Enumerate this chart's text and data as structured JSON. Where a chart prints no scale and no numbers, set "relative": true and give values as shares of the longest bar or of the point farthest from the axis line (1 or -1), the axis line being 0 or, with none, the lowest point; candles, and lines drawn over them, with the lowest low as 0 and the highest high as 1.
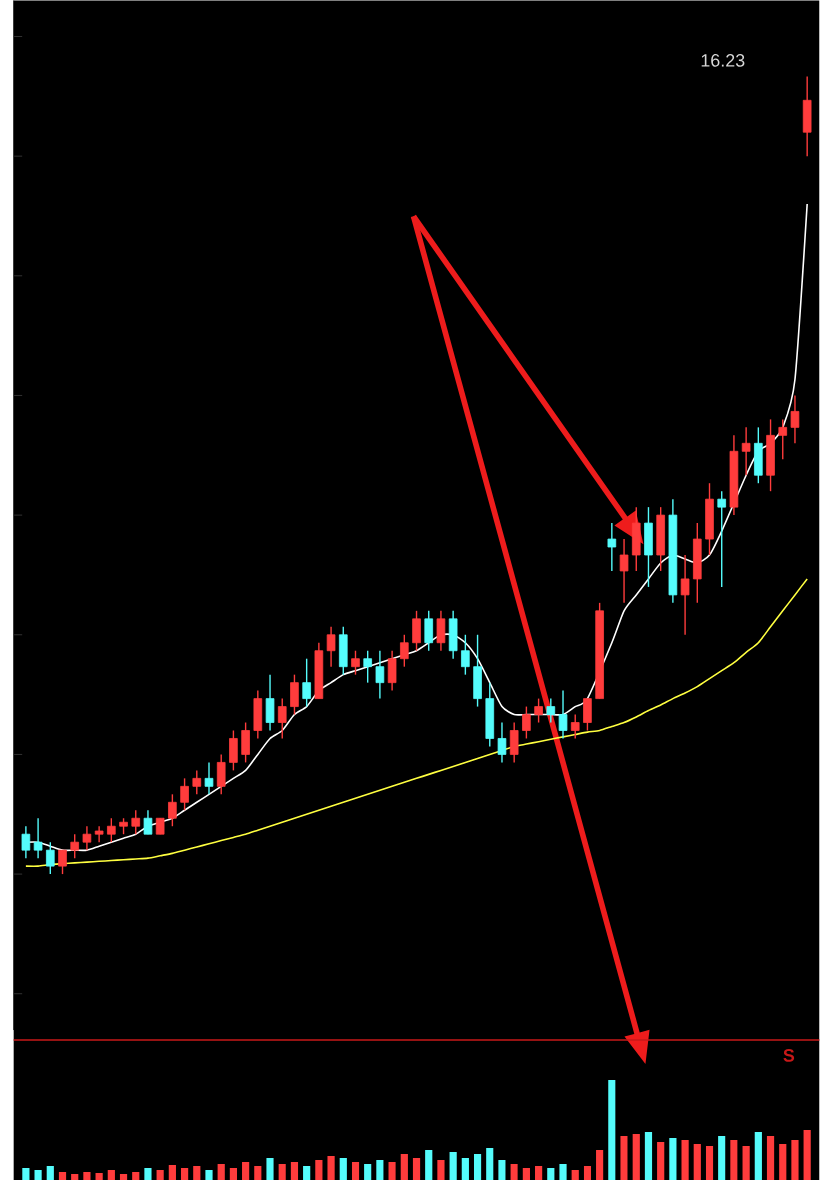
{
  "chart_data": [
    {
      "type": "candlestick",
      "relative": true,
      "categories": [
        null,
        null,
        null,
        null,
        null,
        null,
        null,
        null,
        null,
        null,
        null,
        null,
        null,
        null,
        null,
        null,
        null,
        null,
        null,
        null,
        null,
        null,
        null,
        null,
        null,
        null,
        null,
        null,
        null,
        null,
        null,
        null,
        null,
        null,
        null,
        null,
        null,
        null,
        null,
        null,
        null,
        null,
        null,
        null,
        null,
        null,
        null,
        null,
        null,
        null,
        null,
        null,
        null,
        null,
        null,
        null,
        null,
        null,
        null,
        null,
        null,
        null,
        null,
        null,
        null
      ],
      "ohlc": [
        [
          0.05,
          0.06,
          0.02,
          0.03
        ],
        [
          0.04,
          0.07,
          0.02,
          0.03
        ],
        [
          0.03,
          0.04,
          0,
          0.01
        ],
        [
          0.01,
          0.03,
          0,
          0.03
        ],
        [
          0.03,
          0.05,
          0.02,
          0.04
        ],
        [
          0.04,
          0.06,
          0.03,
          0.05
        ],
        [
          0.05,
          0.06,
          0.04,
          0.05
        ],
        [
          0.05,
          0.07,
          0.04,
          0.06
        ],
        [
          0.06,
          0.07,
          0.05,
          0.065
        ],
        [
          0.06,
          0.08,
          0.05,
          0.07
        ],
        [
          0.07,
          0.08,
          0.05,
          0.05
        ],
        [
          0.05,
          0.07,
          0.05,
          0.07
        ],
        [
          0.07,
          0.1,
          0.06,
          0.09
        ],
        [
          0.09,
          0.12,
          0.08,
          0.11
        ],
        [
          0.11,
          0.13,
          0.1,
          0.12
        ],
        [
          0.12,
          0.14,
          0.1,
          0.11
        ],
        [
          0.11,
          0.15,
          0.1,
          0.14
        ],
        [
          0.14,
          0.18,
          0.13,
          0.17
        ],
        [
          0.15,
          0.19,
          0.14,
          0.18
        ],
        [
          0.18,
          0.23,
          0.17,
          0.22
        ],
        [
          0.22,
          0.25,
          0.18,
          0.19
        ],
        [
          0.19,
          0.22,
          0.17,
          0.21
        ],
        [
          0.21,
          0.25,
          0.2,
          0.24
        ],
        [
          0.24,
          0.27,
          0.21,
          0.22
        ],
        [
          0.22,
          0.29,
          0.22,
          0.28
        ],
        [
          0.28,
          0.31,
          0.26,
          0.3
        ],
        [
          0.3,
          0.31,
          0.25,
          0.26
        ],
        [
          0.26,
          0.28,
          0.25,
          0.27
        ],
        [
          0.27,
          0.28,
          0.24,
          0.26
        ],
        [
          0.26,
          0.28,
          0.22,
          0.24
        ],
        [
          0.24,
          0.28,
          0.23,
          0.27
        ],
        [
          0.27,
          0.3,
          0.26,
          0.29
        ],
        [
          0.29,
          0.33,
          0.28,
          0.32
        ],
        [
          0.32,
          0.33,
          0.28,
          0.29
        ],
        [
          0.29,
          0.33,
          0.28,
          0.32
        ],
        [
          0.32,
          0.33,
          0.27,
          0.28
        ],
        [
          0.28,
          0.3,
          0.25,
          0.26
        ],
        [
          0.26,
          0.3,
          0.21,
          0.22
        ],
        [
          0.22,
          0.24,
          0.16,
          0.17
        ],
        [
          0.17,
          0.19,
          0.14,
          0.15
        ],
        [
          0.15,
          0.19,
          0.14,
          0.18
        ],
        [
          0.18,
          0.21,
          0.17,
          0.2
        ],
        [
          0.2,
          0.22,
          0.19,
          0.21
        ],
        [
          0.21,
          0.22,
          0.19,
          0.2
        ],
        [
          0.2,
          0.23,
          0.17,
          0.18
        ],
        [
          0.18,
          0.2,
          0.17,
          0.19
        ],
        [
          0.19,
          0.22,
          0.18,
          0.22
        ],
        [
          0.22,
          0.34,
          0.22,
          0.33
        ],
        [
          0.42,
          0.44,
          0.38,
          0.41
        ],
        [
          0.38,
          0.42,
          0.34,
          0.4
        ],
        [
          0.4,
          0.46,
          0.38,
          0.44
        ],
        [
          0.44,
          0.46,
          0.36,
          0.4
        ],
        [
          0.4,
          0.46,
          0.38,
          0.45
        ],
        [
          0.45,
          0.47,
          0.34,
          0.35
        ],
        [
          0.35,
          0.4,
          0.3,
          0.37
        ],
        [
          0.37,
          0.44,
          0.34,
          0.42
        ],
        [
          0.42,
          0.49,
          0.4,
          0.47
        ],
        [
          0.47,
          0.48,
          0.36,
          0.46
        ],
        [
          0.46,
          0.55,
          0.45,
          0.53
        ],
        [
          0.53,
          0.56,
          0.5,
          0.54
        ],
        [
          0.54,
          0.56,
          0.49,
          0.5
        ],
        [
          0.5,
          0.57,
          0.48,
          0.55
        ],
        [
          0.55,
          0.57,
          0.52,
          0.56
        ],
        [
          0.56,
          0.6,
          0.54,
          0.58
        ],
        [
          0.93,
          1,
          0.9,
          0.97
        ]
      ],
      "colors": [
        "#54fcfc",
        "#54fcfc",
        "#54fcfc",
        "#ff3c3c",
        "#ff3c3c",
        "#ff3c3c",
        "#ff3c3c",
        "#ff3c3c",
        "#ff3c3c",
        "#ff3c3c",
        "#54fcfc",
        "#ff3c3c",
        "#ff3c3c",
        "#ff3c3c",
        "#ff3c3c",
        "#54fcfc",
        "#ff3c3c",
        "#ff3c3c",
        "#ff3c3c",
        "#ff3c3c",
        "#54fcfc",
        "#ff3c3c",
        "#ff3c3c",
        "#54fcfc",
        "#ff3c3c",
        "#ff3c3c",
        "#54fcfc",
        "#ff3c3c",
        "#54fcfc",
        "#54fcfc",
        "#ff3c3c",
        "#ff3c3c",
        "#ff3c3c",
        "#54fcfc",
        "#ff3c3c",
        "#54fcfc",
        "#54fcfc",
        "#54fcfc",
        "#54fcfc",
        "#54fcfc",
        "#ff3c3c",
        "#ff3c3c",
        "#ff3c3c",
        "#54fcfc",
        "#54fcfc",
        "#ff3c3c",
        "#ff3c3c",
        "#ff3c3c",
        "#54fcfc",
        "#ff3c3c",
        "#ff3c3c",
        "#54fcfc",
        "#ff3c3c",
        "#54fcfc",
        "#ff3c3c",
        "#ff3c3c",
        "#ff3c3c",
        "#54fcfc",
        "#ff3c3c",
        "#ff3c3c",
        "#54fcfc",
        "#ff3c3c",
        "#ff3c3c",
        "#ff3c3c",
        "#ff3c3c"
      ],
      "series": [
        {
          "type": "line",
          "color": "#ffffff",
          "values": [
            0.04,
            0.04,
            0.035,
            0.03,
            0.03,
            0.03,
            0.035,
            0.04,
            0.045,
            0.05,
            0.06,
            0.065,
            0.07,
            0.08,
            0.09,
            0.1,
            0.11,
            0.12,
            0.13,
            0.15,
            0.17,
            0.18,
            0.2,
            0.21,
            0.23,
            0.24,
            0.25,
            0.255,
            0.26,
            0.265,
            0.27,
            0.275,
            0.28,
            0.29,
            0.3,
            0.3,
            0.29,
            0.27,
            0.24,
            0.21,
            0.2,
            0.2,
            0.2,
            0.2,
            0.2,
            0.21,
            0.22,
            null,
            0.29,
            0.33,
            0.35,
            0.37,
            0.39,
            0.4,
            0.395,
            0.39,
            0.4,
            0.43,
            null,
            0.5,
            0.53,
            0.54,
            0.56,
            0.62,
            0.84
          ]
        },
        {
          "type": "line",
          "color": "#ffff40",
          "values": [
            0.01,
            0.01,
            0.012,
            0.013,
            0.014,
            0.015,
            0.016,
            0.017,
            0.018,
            0.019,
            0.02,
            0.023,
            0.026,
            0.03,
            0.034,
            0.038,
            0.042,
            0.046,
            0.05,
            0.055,
            0.06,
            0.065,
            0.07,
            0.075,
            0.08,
            0.085,
            0.09,
            0.095,
            0.1,
            0.105,
            0.11,
            0.115,
            0.12,
            0.125,
            0.13,
            0.135,
            0.14,
            0.145,
            0.15,
            0.155,
            0.16,
            0.163,
            0.166,
            0.169,
            0.172,
            0.175,
            0.178,
            0.18,
            0.185,
            0.19,
            0.197,
            0.205,
            0.212,
            0.22,
            0.227,
            0.235,
            0.245,
            0.255,
            0.265,
            0.278,
            0.29,
            0.31,
            0.33,
            0.35,
            0.37
          ]
        }
      ],
      "annotations": [
        "16.23"
      ]
    },
    {
      "type": "bar",
      "relative": true,
      "categories": [
        null,
        null,
        null,
        null,
        null,
        null,
        null,
        null,
        null,
        null,
        null,
        null,
        null,
        null,
        null,
        null,
        null,
        null,
        null,
        null,
        null,
        null,
        null,
        null,
        null,
        null,
        null,
        null,
        null,
        null,
        null,
        null,
        null,
        null,
        null,
        null,
        null,
        null,
        null,
        null,
        null,
        null,
        null,
        null,
        null,
        null,
        null,
        null,
        null,
        null,
        null,
        null,
        null,
        null,
        null,
        null,
        null,
        null,
        null,
        null,
        null,
        null,
        null,
        null,
        null
      ],
      "values": [
        0.12,
        0.1,
        0.14,
        0.08,
        0.06,
        0.08,
        0.07,
        0.1,
        0.06,
        0.08,
        0.12,
        0.1,
        0.15,
        0.12,
        0.14,
        0.1,
        0.16,
        0.12,
        0.18,
        0.14,
        0.22,
        0.16,
        0.18,
        0.14,
        0.2,
        0.24,
        0.22,
        0.18,
        0.16,
        0.2,
        0.18,
        0.26,
        0.22,
        0.3,
        0.2,
        0.28,
        0.22,
        0.26,
        0.32,
        0.2,
        0.16,
        0.12,
        0.14,
        0.12,
        0.16,
        0.1,
        0.14,
        0.3,
        1.0,
        0.44,
        0.46,
        0.48,
        0.38,
        0.42,
        0.4,
        0.36,
        0.34,
        0.44,
        0.4,
        0.34,
        0.48,
        0.44,
        0.36,
        0.4,
        0.5
      ],
      "colors": [
        "#54fcfc",
        "#54fcfc",
        "#54fcfc",
        "#ff3c3c",
        "#ff3c3c",
        "#ff3c3c",
        "#ff3c3c",
        "#ff3c3c",
        "#ff3c3c",
        "#ff3c3c",
        "#54fcfc",
        "#ff3c3c",
        "#ff3c3c",
        "#ff3c3c",
        "#ff3c3c",
        "#54fcfc",
        "#ff3c3c",
        "#ff3c3c",
        "#ff3c3c",
        "#ff3c3c",
        "#54fcfc",
        "#ff3c3c",
        "#ff3c3c",
        "#54fcfc",
        "#ff3c3c",
        "#ff3c3c",
        "#54fcfc",
        "#ff3c3c",
        "#54fcfc",
        "#54fcfc",
        "#ff3c3c",
        "#ff3c3c",
        "#ff3c3c",
        "#54fcfc",
        "#ff3c3c",
        "#54fcfc",
        "#54fcfc",
        "#54fcfc",
        "#54fcfc",
        "#54fcfc",
        "#ff3c3c",
        "#ff3c3c",
        "#ff3c3c",
        "#54fcfc",
        "#54fcfc",
        "#ff3c3c",
        "#ff3c3c",
        "#ff3c3c",
        "#54fcfc",
        "#ff3c3c",
        "#ff3c3c",
        "#54fcfc",
        "#ff3c3c",
        "#54fcfc",
        "#ff3c3c",
        "#ff3c3c",
        "#ff3c3c",
        "#54fcfc",
        "#ff3c3c",
        "#ff3c3c",
        "#54fcfc",
        "#ff3c3c",
        "#ff3c3c",
        "#ff3c3c",
        "#ff3c3c"
      ],
      "annotations": [
        "S"
      ]
    }
  ]
}
